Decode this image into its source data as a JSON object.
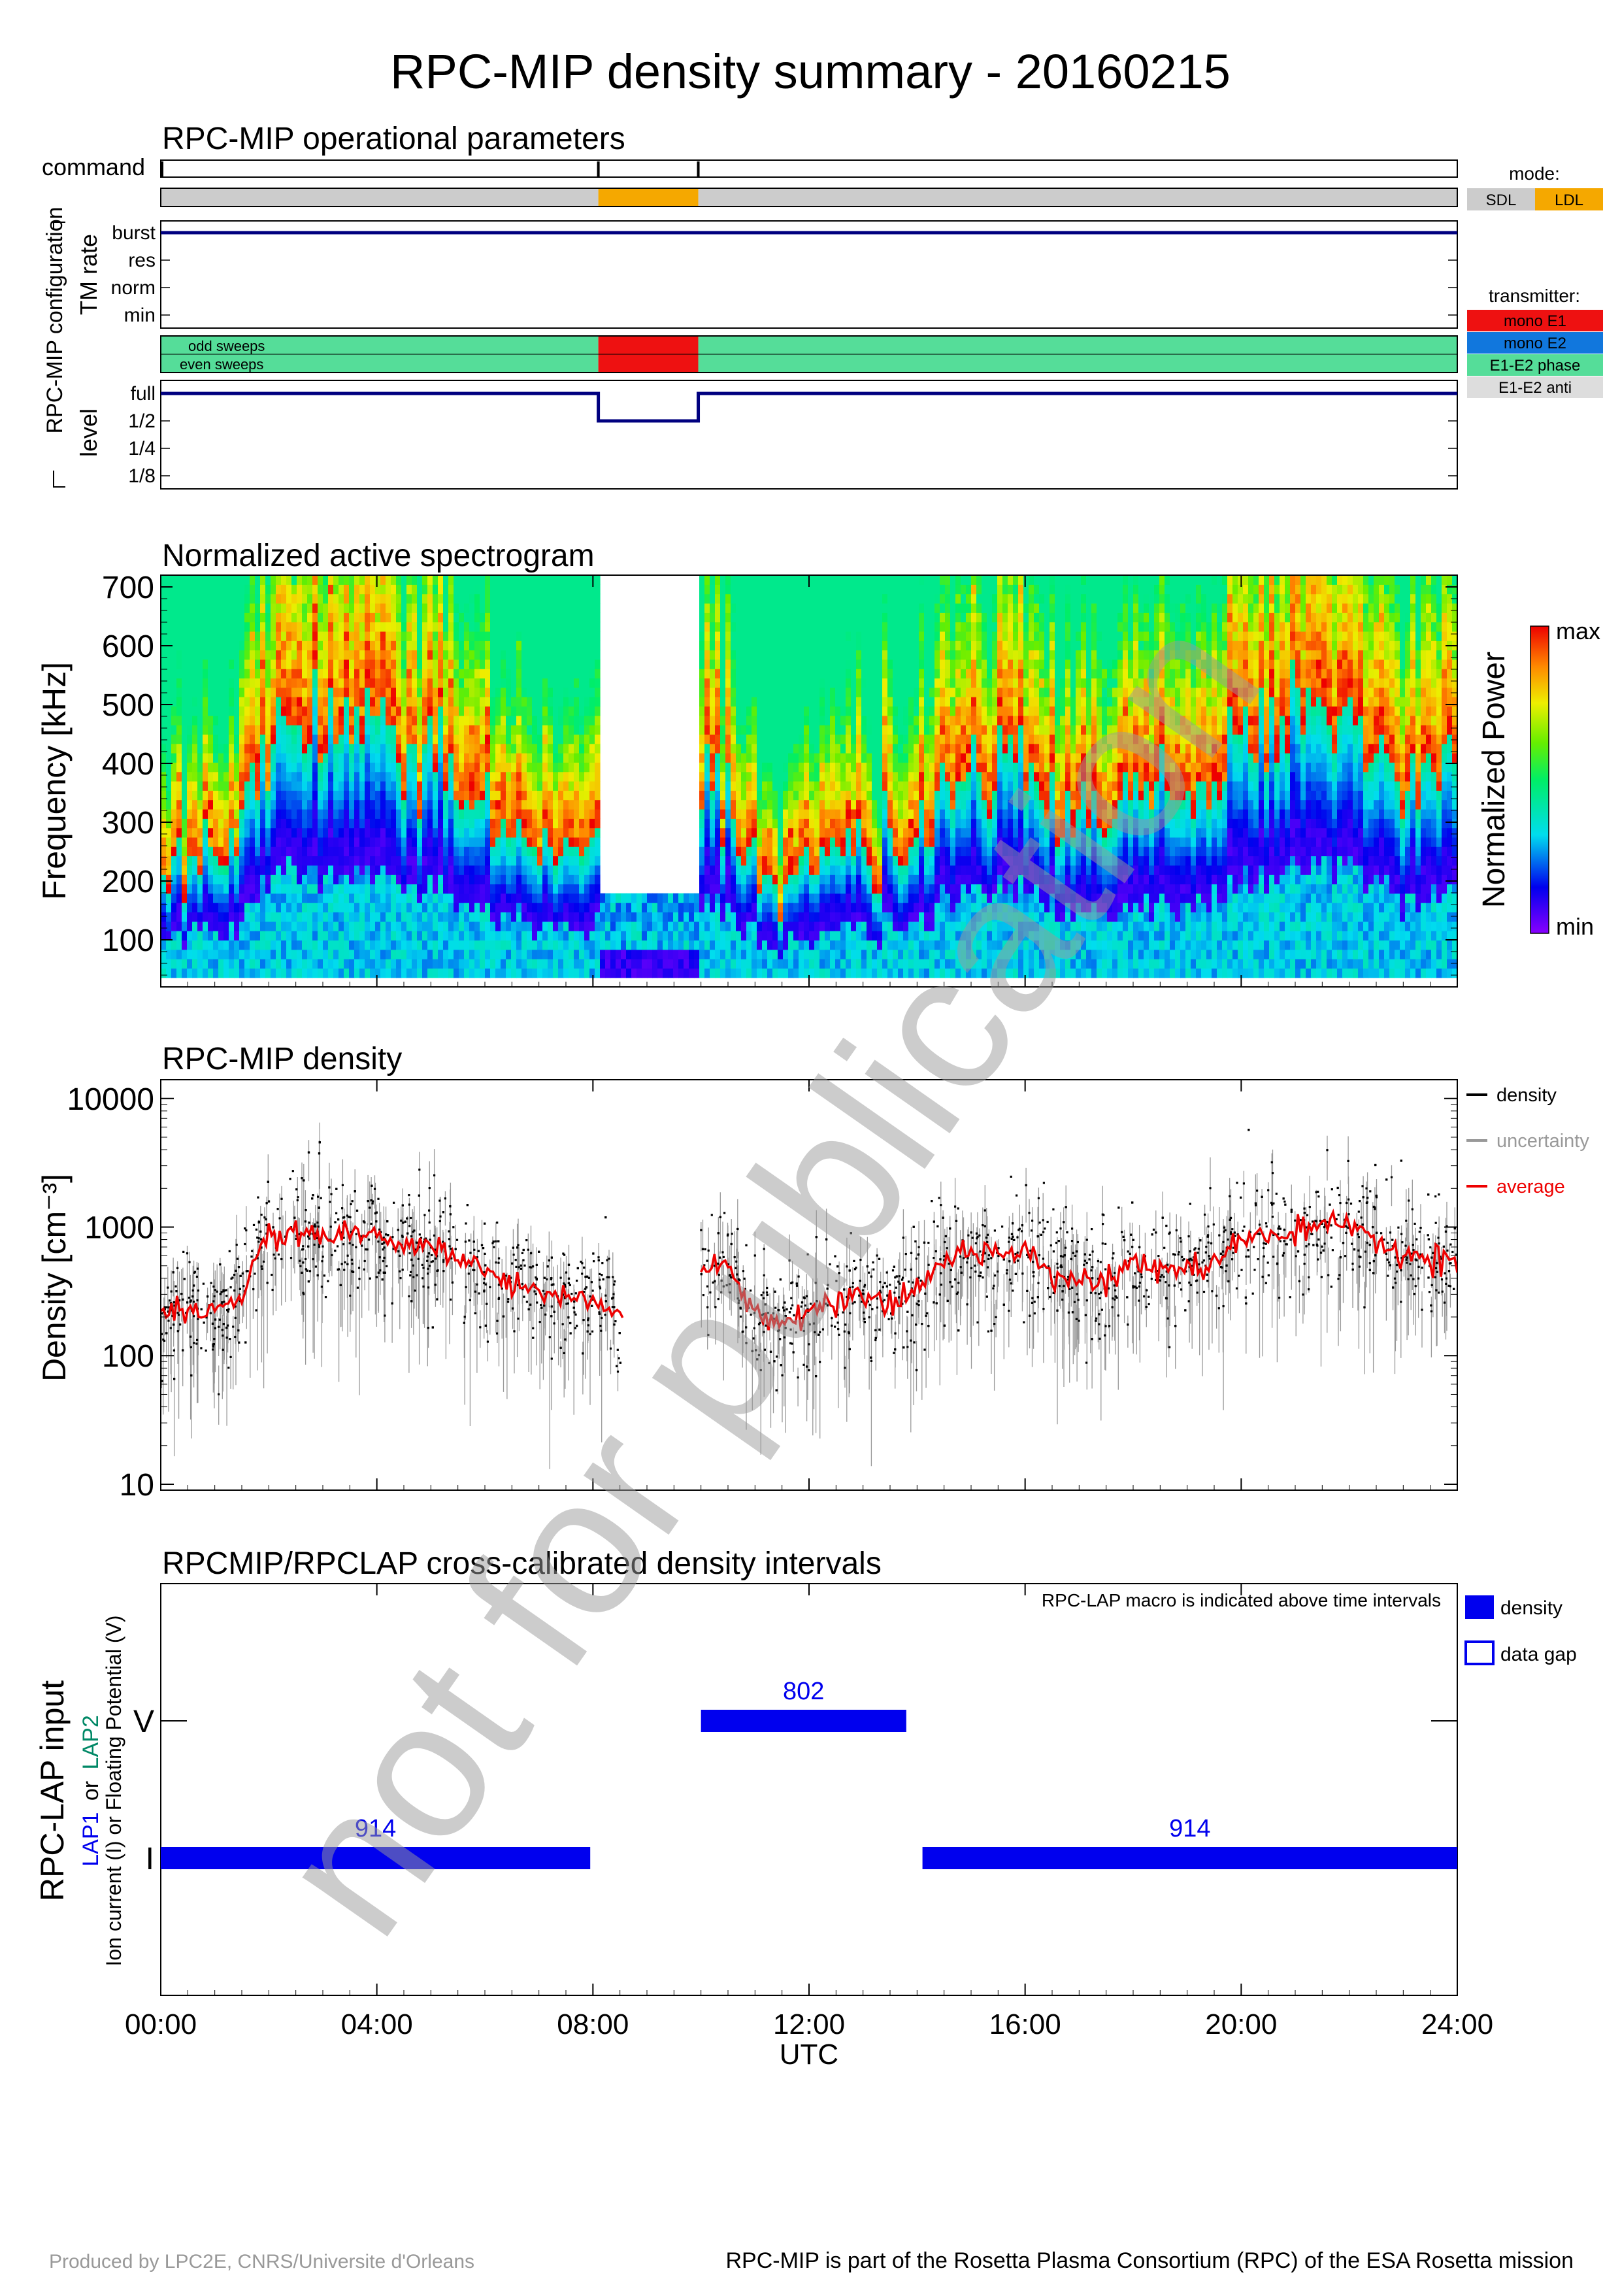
{
  "title": "RPC-MIP density summary - 20160215",
  "watermark": "not for publication",
  "footer": {
    "left": "Produced by LPC2E, CNRS/Universite d'Orleans",
    "right": "RPC-MIP is part of the Rosetta Plasma Consortium (RPC) of the ESA Rosetta mission"
  },
  "colors": {
    "navy": "#00007f",
    "sdl": "#cccccc",
    "ldl": "#f5a800",
    "mono_e1": "#ee1111",
    "mono_e2": "#1177dd",
    "e1e2_phase": "#55dd99",
    "e1e2_anti": "#dddddd",
    "density_blue": "#0000ee",
    "average_red": "#ee0000",
    "lap2_green": "#008866"
  },
  "ops": {
    "title": "RPC-MIP operational parameters",
    "command_label": "command",
    "config_label": "RPC-MIP configuration",
    "tm_rate_label": "TM rate",
    "tm_rate_levels": [
      "burst",
      "res",
      "norm",
      "min"
    ],
    "sweep_labels": [
      "odd sweeps",
      "even sweeps"
    ],
    "level_label": "level",
    "level_levels": [
      "full",
      "1/2",
      "1/4",
      "1/8"
    ],
    "command_times_h": [
      0,
      8.1,
      9.95
    ],
    "mode": {
      "title": "mode:",
      "items": [
        {
          "label": "SDL",
          "color": "#cccccc"
        },
        {
          "label": "LDL",
          "color": "#f5a800"
        }
      ],
      "segments": [
        {
          "start_h": 0,
          "end_h": 8.1,
          "mode": "SDL"
        },
        {
          "start_h": 8.1,
          "end_h": 9.95,
          "mode": "LDL"
        },
        {
          "start_h": 9.95,
          "end_h": 24,
          "mode": "SDL"
        }
      ]
    },
    "transmitter": {
      "title": "transmitter:",
      "items": [
        {
          "label": "mono E1",
          "color": "#ee1111"
        },
        {
          "label": "mono E2",
          "color": "#1177dd"
        },
        {
          "label": "E1-E2 phase",
          "color": "#55dd99"
        },
        {
          "label": "E1-E2 anti",
          "color": "#dddddd"
        }
      ],
      "segments": [
        {
          "start_h": 0,
          "end_h": 8.1,
          "tx": "E1-E2 phase"
        },
        {
          "start_h": 8.1,
          "end_h": 9.95,
          "tx": "mono E1"
        },
        {
          "start_h": 9.95,
          "end_h": 24,
          "tx": "E1-E2 phase"
        }
      ]
    },
    "tm_rate_series": [
      {
        "start_h": 0,
        "end_h": 24,
        "level": "burst"
      }
    ],
    "level_series": [
      {
        "start_h": 0,
        "end_h": 8.1,
        "level": "full"
      },
      {
        "start_h": 8.1,
        "end_h": 9.95,
        "level": "1/2"
      },
      {
        "start_h": 9.95,
        "end_h": 24,
        "level": "full"
      }
    ]
  },
  "spectrogram": {
    "title": "Normalized active spectrogram",
    "ylabel": "Frequency [kHz]",
    "yticks": [
      "100",
      "200",
      "300",
      "400",
      "500",
      "600",
      "700"
    ],
    "ylim": [
      20,
      720
    ],
    "colorbar_label": "Normalized Power",
    "colorbar_max": "max",
    "colorbar_min": "min",
    "gap_h": [
      8.1,
      9.95
    ],
    "gap_top_khz": 175
  },
  "chart_data": [
    {
      "type": "scatter",
      "title": "RPC-MIP density",
      "ylabel": "Density [cm⁻³]",
      "yscale": "log",
      "ylim": [
        9,
        14000
      ],
      "yticks": [
        "10",
        "100",
        "1000",
        "10000"
      ],
      "xlim": [
        0,
        24
      ],
      "legend": [
        {
          "label": "density",
          "color": "#000000"
        },
        {
          "label": "uncertainty",
          "color": "#999999"
        },
        {
          "label": "average",
          "color": "#ee0000"
        }
      ],
      "legend_position": "right",
      "series": [
        {
          "name": "average",
          "x": [
            0.0,
            0.5,
            1.0,
            1.5,
            2.0,
            2.5,
            3.0,
            3.5,
            4.0,
            4.5,
            5.0,
            5.5,
            6.0,
            6.5,
            7.0,
            7.5,
            8.0,
            8.5,
            10.0,
            10.5,
            10.8,
            11.2,
            11.8,
            12.3,
            13.0,
            13.5,
            14.0,
            14.5,
            15.0,
            15.5,
            16.0,
            16.5,
            17.0,
            17.5,
            18.0,
            18.5,
            19.0,
            19.5,
            20.0,
            20.5,
            21.0,
            21.5,
            22.0,
            22.5,
            23.0,
            23.5,
            24.0
          ],
          "values": [
            200,
            210,
            220,
            300,
            800,
            900,
            850,
            900,
            800,
            700,
            700,
            600,
            450,
            350,
            330,
            300,
            280,
            190,
            450,
            500,
            280,
            170,
            190,
            250,
            280,
            240,
            300,
            580,
            620,
            650,
            700,
            450,
            380,
            400,
            500,
            450,
            480,
            500,
            800,
            880,
            900,
            1000,
            950,
            800,
            600,
            550,
            550
          ]
        }
      ],
      "data_gaps_h": [
        [
          8.55,
          10.0
        ]
      ]
    },
    {
      "type": "bar",
      "title": "RPCMIP/RPCLAP cross-calibrated density intervals",
      "ylabel_main": "RPC-LAP input",
      "ylabel_lap1": "LAP1",
      "ylabel_or": "or",
      "ylabel_lap2": "LAP2",
      "ylabel_sub": "Ion current (I) or Floating Potential (V)",
      "categories": [
        "V",
        "I"
      ],
      "note": "RPC-LAP macro is indicated above time intervals",
      "legend": [
        {
          "label": "density",
          "style": "filled"
        },
        {
          "label": "data gap",
          "style": "outline"
        }
      ],
      "legend_position": "right",
      "xlabel": "UTC",
      "xlim": [
        0,
        24
      ],
      "xticks": [
        "00:00",
        "04:00",
        "08:00",
        "12:00",
        "16:00",
        "20:00",
        "24:00"
      ],
      "intervals": [
        {
          "category": "I",
          "start_h": 0.0,
          "end_h": 7.95,
          "macro": "914"
        },
        {
          "category": "V",
          "start_h": 10.0,
          "end_h": 13.8,
          "macro": "802"
        },
        {
          "category": "I",
          "start_h": 14.1,
          "end_h": 24.0,
          "macro": "914"
        }
      ]
    }
  ]
}
